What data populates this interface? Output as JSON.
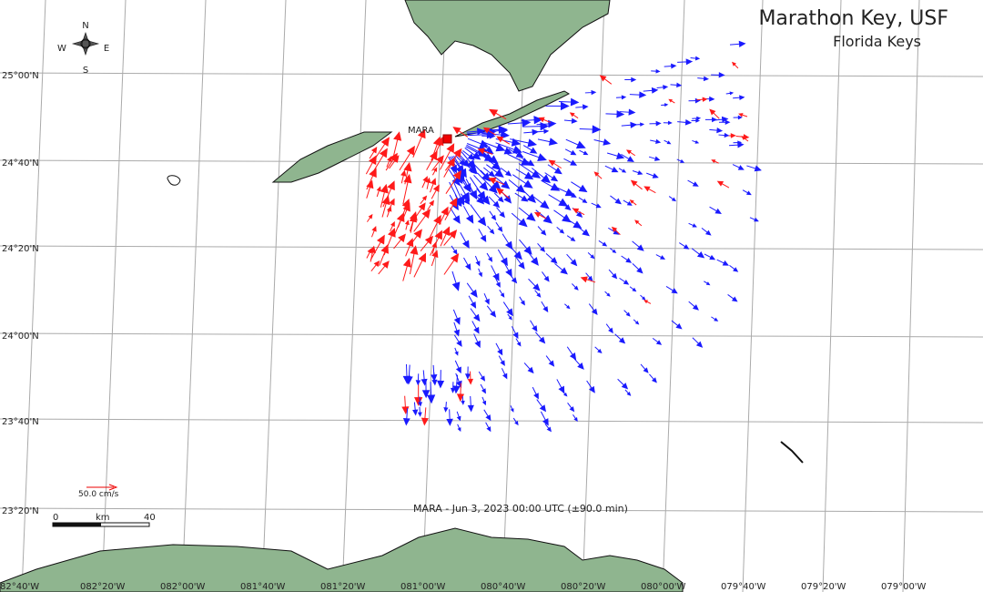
{
  "title": "Marathon Key, USF",
  "subtitle": "Florida Keys",
  "station": "MARA",
  "compass": {
    "n": "N",
    "s": "S",
    "e": "E",
    "w": "W"
  },
  "latitude_labels": [
    "25°00'N",
    "24°40'N",
    "24°20'N",
    "24°00'N",
    "23°40'N",
    "23°20'N"
  ],
  "longitude_labels": [
    "82°40'W",
    "082°20'W",
    "082°00'W",
    "081°40'W",
    "081°20'W",
    "081°00'W",
    "080°40'W",
    "080°20'W",
    "080°00'W",
    "079°40'W",
    "079°20'W",
    "079°00'W"
  ],
  "scale": {
    "vector": "50.0 cm/s",
    "start": "0",
    "unit": "km",
    "end": "40"
  },
  "timestamp": "MARA - Jun 3, 2023 00:00 UTC (±90.0 min)"
}
